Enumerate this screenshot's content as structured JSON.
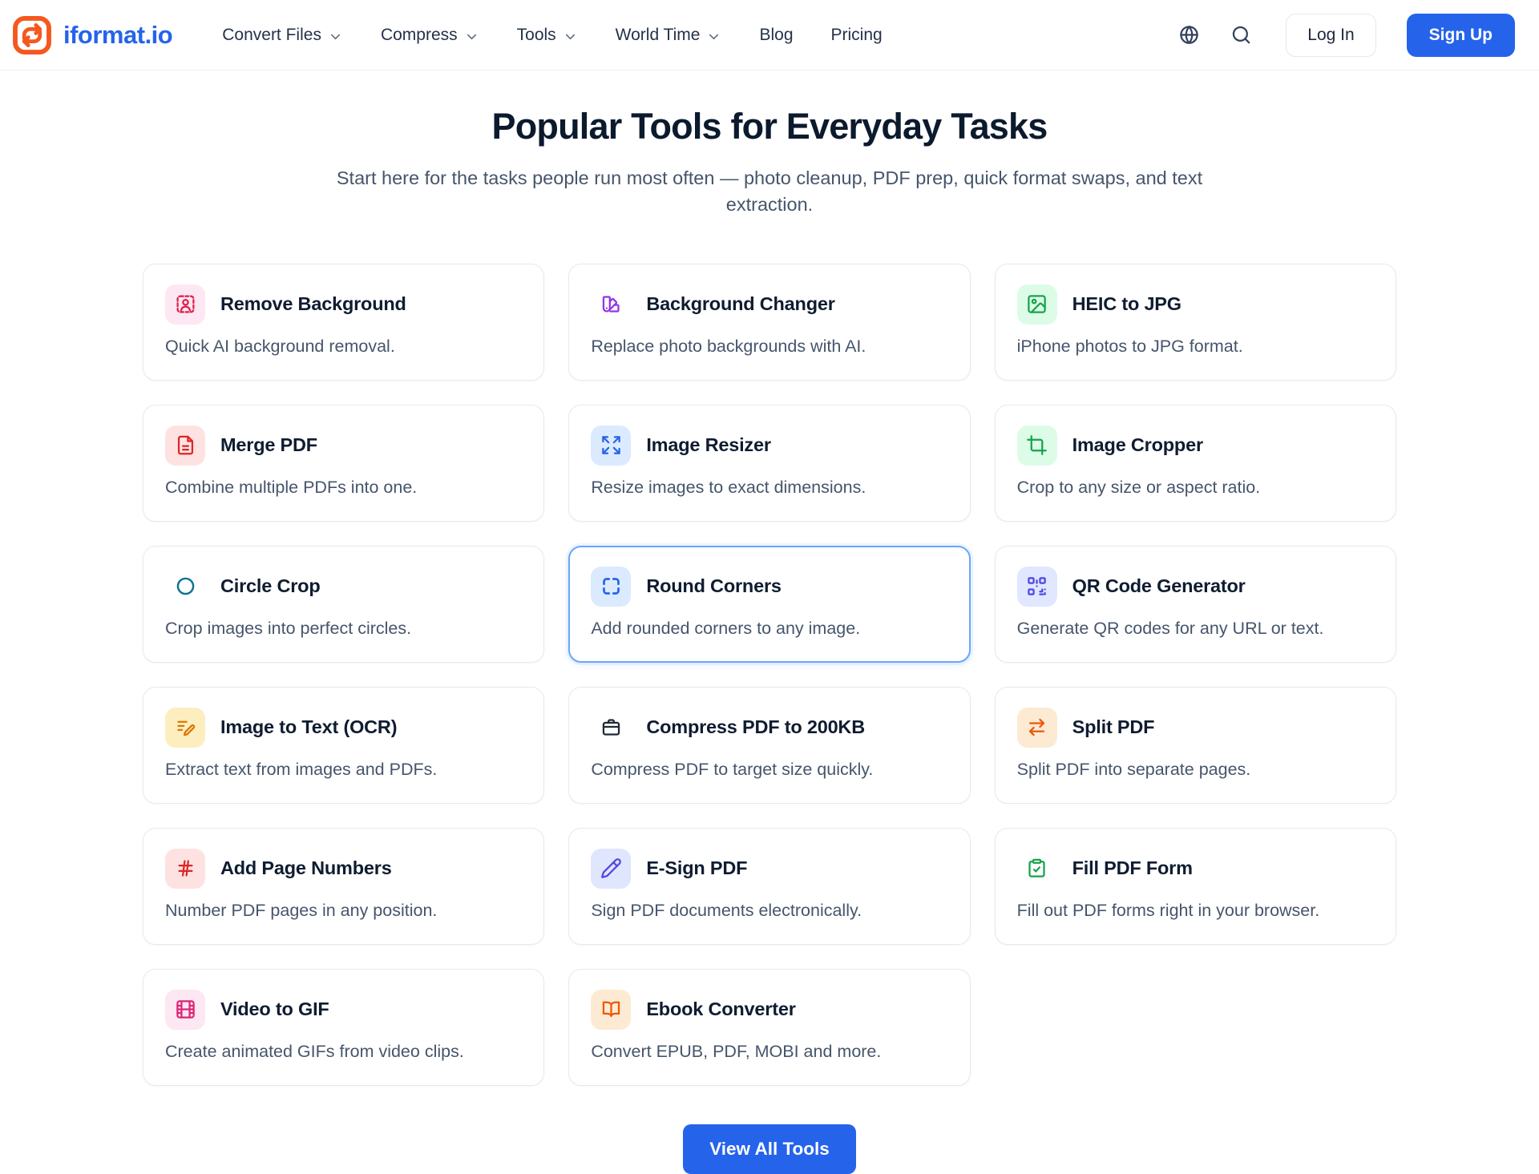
{
  "header": {
    "brand": "iformat.io",
    "logo_icon": "swap-arrows-logo-icon",
    "nav": [
      {
        "label": "Convert Files",
        "dropdown": true
      },
      {
        "label": "Compress",
        "dropdown": true
      },
      {
        "label": "Tools",
        "dropdown": true
      },
      {
        "label": "World Time",
        "dropdown": true
      },
      {
        "label": "Blog",
        "dropdown": false
      },
      {
        "label": "Pricing",
        "dropdown": false
      }
    ],
    "actions": {
      "language_icon": "globe-icon",
      "search_icon": "search-icon",
      "login_label": "Log In",
      "signup_label": "Sign Up"
    }
  },
  "hero": {
    "title": "Popular Tools for Everyday Tasks",
    "subtitle": "Start here for the tasks people run most often — photo cleanup, PDF prep, quick format swaps, and text extraction."
  },
  "tools": [
    {
      "name": "Remove Background",
      "description": "Quick AI background removal.",
      "icon": "person-scan-icon",
      "icon_color": "#e11d48",
      "icon_bg": "#fce7f3",
      "highlighted": false
    },
    {
      "name": "Background Changer",
      "description": "Replace photo backgrounds with AI.",
      "icon": "swatch-book-icon",
      "icon_color": "#9333ea",
      "icon_bg": "transparent",
      "highlighted": false
    },
    {
      "name": "HEIC to JPG",
      "description": "iPhone photos to JPG format.",
      "icon": "image-icon",
      "icon_color": "#16a34a",
      "icon_bg": "#dcfce7",
      "highlighted": false
    },
    {
      "name": "Merge PDF",
      "description": "Combine multiple PDFs into one.",
      "icon": "file-text-icon",
      "icon_color": "#dc2626",
      "icon_bg": "#fee2e2",
      "highlighted": false
    },
    {
      "name": "Image Resizer",
      "description": "Resize images to exact dimensions.",
      "icon": "expand-arrows-icon",
      "icon_color": "#2563eb",
      "icon_bg": "#dbeafe",
      "highlighted": false
    },
    {
      "name": "Image Cropper",
      "description": "Crop to any size or aspect ratio.",
      "icon": "crop-icon",
      "icon_color": "#16a34a",
      "icon_bg": "#dcfce7",
      "highlighted": false
    },
    {
      "name": "Circle Crop",
      "description": "Crop images into perfect circles.",
      "icon": "circle-icon",
      "icon_color": "#0e7490",
      "icon_bg": "transparent",
      "highlighted": false
    },
    {
      "name": "Round Corners",
      "description": "Add rounded corners to any image.",
      "icon": "round-corners-icon",
      "icon_color": "#2563eb",
      "icon_bg": "#dbeafe",
      "highlighted": true
    },
    {
      "name": "QR Code Generator",
      "description": "Generate QR codes for any URL or text.",
      "icon": "qr-code-icon",
      "icon_color": "#4f46e5",
      "icon_bg": "#e0e7ff",
      "highlighted": false
    },
    {
      "name": "Image to Text (OCR)",
      "description": "Extract text from images and PDFs.",
      "icon": "text-scan-icon",
      "icon_color": "#d97706",
      "icon_bg": "#fdeebf",
      "highlighted": false
    },
    {
      "name": "Compress PDF to 200KB",
      "description": "Compress PDF to target size quickly.",
      "icon": "compress-icon",
      "icon_color": "#1f2937",
      "icon_bg": "transparent",
      "highlighted": false
    },
    {
      "name": "Split PDF",
      "description": "Split PDF into separate pages.",
      "icon": "swap-arrows-icon",
      "icon_color": "#ea580c",
      "icon_bg": "#fdead2",
      "highlighted": false
    },
    {
      "name": "Add Page Numbers",
      "description": "Number PDF pages in any position.",
      "icon": "hash-icon",
      "icon_color": "#dc2626",
      "icon_bg": "#fee2e2",
      "highlighted": false
    },
    {
      "name": "E-Sign PDF",
      "description": "Sign PDF documents electronically.",
      "icon": "pen-icon",
      "icon_color": "#4f46e5",
      "icon_bg": "#dfe6fd",
      "highlighted": false
    },
    {
      "name": "Fill PDF Form",
      "description": "Fill out PDF forms right in your browser.",
      "icon": "clipboard-check-icon",
      "icon_color": "#16a34a",
      "icon_bg": "transparent",
      "highlighted": false
    },
    {
      "name": "Video to GIF",
      "description": "Create animated GIFs from video clips.",
      "icon": "film-icon",
      "icon_color": "#db2777",
      "icon_bg": "#fce7f3",
      "highlighted": false
    },
    {
      "name": "Ebook Converter",
      "description": "Convert EPUB, PDF, MOBI and more.",
      "icon": "book-open-icon",
      "icon_color": "#ea580c",
      "icon_bg": "#fdead2",
      "highlighted": false
    }
  ],
  "cta": {
    "view_all_label": "View All Tools"
  },
  "colors": {
    "accent": "#2563eb",
    "logo_orange": "#f4581f",
    "highlight_border": "#6aa6f8",
    "title_text": "#0f1c30",
    "body_text": "#46556b"
  }
}
